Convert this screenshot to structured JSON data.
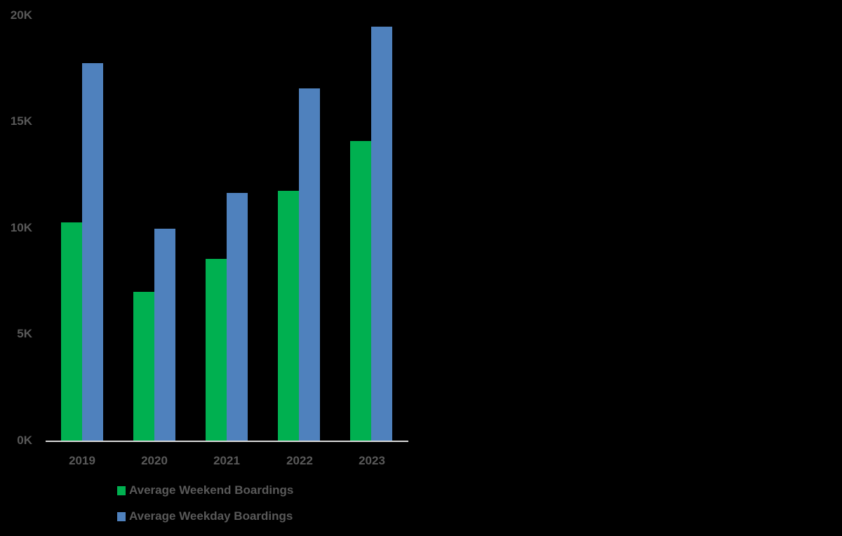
{
  "chart_data": {
    "type": "bar",
    "title": "",
    "xlabel": "",
    "ylabel": "",
    "categories": [
      "2019",
      "2020",
      "2021",
      "2022",
      "2023"
    ],
    "series": [
      {
        "name": "Average Weekend Boardings",
        "color": "#00b050",
        "values": [
          10270,
          7000,
          8550,
          11750,
          14090
        ]
      },
      {
        "name": "Average Weekday Boardings",
        "color": "#4f81bd",
        "values": [
          17760,
          9970,
          11650,
          16570,
          19470
        ]
      }
    ],
    "ylim": [
      0,
      20000
    ],
    "yticks": [
      "0K",
      "5K",
      "10K",
      "15K",
      "20K"
    ],
    "grid": false,
    "legend_position": "bottom"
  },
  "axis": {
    "yticks": [
      "0K",
      "5K",
      "10K",
      "15K",
      "20K"
    ],
    "xticks": [
      "2019",
      "2020",
      "2021",
      "2022",
      "2023"
    ]
  },
  "legend": {
    "items": [
      {
        "label": "Average Weekend Boardings",
        "color": "#00b050"
      },
      {
        "label": "Average Weekday Boardings",
        "color": "#4f81bd"
      }
    ]
  }
}
